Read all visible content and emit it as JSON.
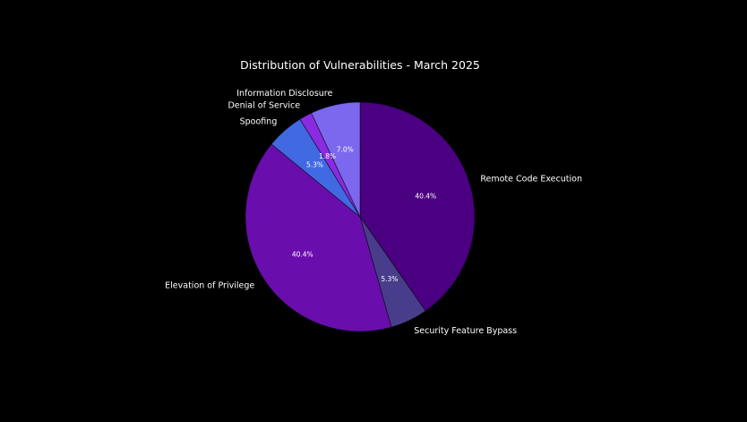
{
  "chart_data": {
    "type": "pie",
    "title": "Distribution of Vulnerabilities - March 2025",
    "start_angle_deg": 90,
    "direction": "clockwise",
    "legend": "none",
    "slices": [
      {
        "label": "Remote Code Execution",
        "value": 40.4,
        "pct_label": "40.4%",
        "color": "#4b0082"
      },
      {
        "label": "Security Feature Bypass",
        "value": 5.3,
        "pct_label": "5.3%",
        "color": "#483d8b"
      },
      {
        "label": "Elevation of Privilege",
        "value": 40.4,
        "pct_label": "40.4%",
        "color": "#6a0dad"
      },
      {
        "label": "Spoofing",
        "value": 5.3,
        "pct_label": "5.3%",
        "color": "#4169e1"
      },
      {
        "label": "Denial of Service",
        "value": 1.8,
        "pct_label": "1.8%",
        "color": "#8a2be2"
      },
      {
        "label": "Information Disclosure",
        "value": 7.0,
        "pct_label": "7.0%",
        "color": "#7b68ee"
      }
    ]
  }
}
